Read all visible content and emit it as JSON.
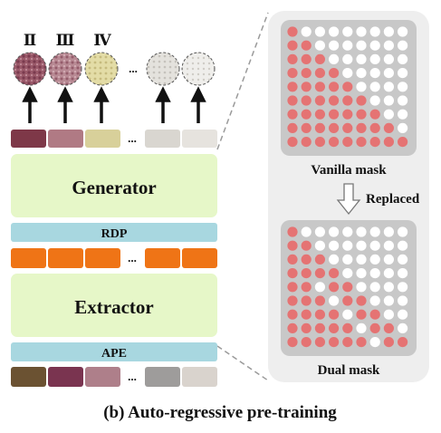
{
  "stage_labels": [
    "Ⅱ",
    "Ⅲ",
    "Ⅳ"
  ],
  "ellipsis": "...",
  "blocks": {
    "generator": "Generator",
    "rdp": "RDP",
    "extractor": "Extractor",
    "ape": "APE"
  },
  "panel": {
    "vanilla_label": "Vanilla mask",
    "replaced_label": "Replaced",
    "dual_label": "Dual mask"
  },
  "caption": "(b) Auto-regressive pre-training",
  "colors": {
    "block_green": "#e6f7c8",
    "bar_blue": "#a8d7e0",
    "token_orange": "#ef7416",
    "panel_bg": "#eeeeee",
    "grid_bg": "#c8c8c8",
    "dot_masked": "#e57373",
    "dot_open": "#ffffff",
    "top_tokens": [
      "#7e3848",
      "#b07a84",
      "#d8d09a",
      "#d9d6d0",
      "#e6e3de"
    ],
    "bottom_tokens": [
      "#6b5232",
      "#7a3450",
      "#ae7f8a",
      "#9e9c9b",
      "#d9d3cd"
    ]
  },
  "masks": {
    "vanilla": [
      [
        1,
        0,
        0,
        0,
        0,
        0,
        0,
        0,
        0
      ],
      [
        1,
        1,
        0,
        0,
        0,
        0,
        0,
        0,
        0
      ],
      [
        1,
        1,
        1,
        0,
        0,
        0,
        0,
        0,
        0
      ],
      [
        1,
        1,
        1,
        1,
        0,
        0,
        0,
        0,
        0
      ],
      [
        1,
        1,
        1,
        1,
        1,
        0,
        0,
        0,
        0
      ],
      [
        1,
        1,
        1,
        1,
        1,
        1,
        0,
        0,
        0
      ],
      [
        1,
        1,
        1,
        1,
        1,
        1,
        1,
        0,
        0
      ],
      [
        1,
        1,
        1,
        1,
        1,
        1,
        1,
        1,
        0
      ],
      [
        1,
        1,
        1,
        1,
        1,
        1,
        1,
        1,
        1
      ]
    ],
    "dual": [
      [
        1,
        0,
        0,
        0,
        0,
        0,
        0,
        0,
        0
      ],
      [
        1,
        1,
        0,
        0,
        0,
        0,
        0,
        0,
        0
      ],
      [
        1,
        1,
        1,
        0,
        0,
        0,
        0,
        0,
        0
      ],
      [
        1,
        1,
        1,
        1,
        0,
        0,
        0,
        0,
        0
      ],
      [
        1,
        1,
        0,
        1,
        1,
        0,
        0,
        0,
        0
      ],
      [
        1,
        1,
        1,
        0,
        1,
        1,
        0,
        0,
        0
      ],
      [
        1,
        1,
        1,
        1,
        0,
        1,
        1,
        0,
        0
      ],
      [
        1,
        1,
        1,
        1,
        1,
        0,
        1,
        1,
        0
      ],
      [
        1,
        1,
        1,
        1,
        1,
        1,
        0,
        1,
        1
      ]
    ]
  }
}
